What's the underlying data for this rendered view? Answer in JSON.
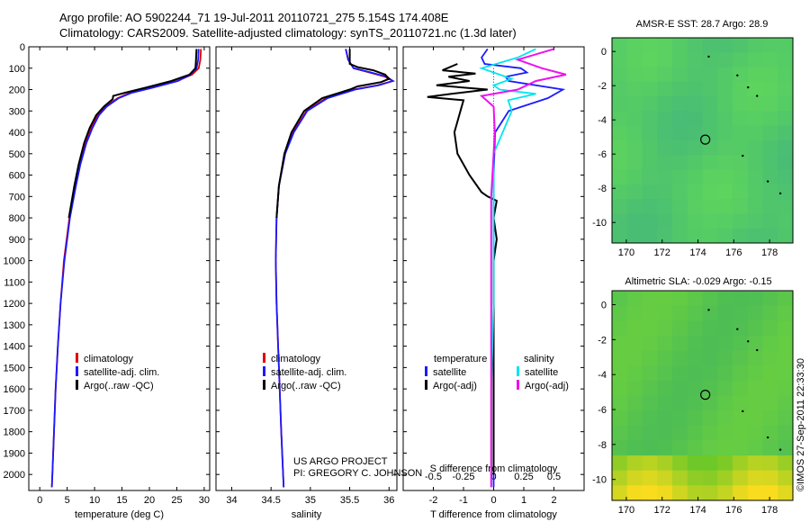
{
  "header": {
    "line1": "Argo profile: AO 5902244_71 19-Jul-2011 20110721_275 5.154S 174.408E",
    "line2": "Climatology: CARS2009. Satellite-adjusted climatology: synTS_20110721.nc (1.3d later)"
  },
  "colors": {
    "climatology": "#e00000",
    "satellite": "#1a1aff",
    "argo": "#000000",
    "cyan": "#00e5ee",
    "magenta": "#ee11ee"
  },
  "chart_data": [
    {
      "type": "line",
      "name": "temperature-profile",
      "xlabel": "temperature (deg C)",
      "ylim": [
        0,
        2075
      ],
      "xlim": [
        -2,
        31
      ],
      "xticks": [
        0,
        5,
        10,
        15,
        20,
        25,
        30
      ],
      "yticks": [
        0,
        100,
        200,
        300,
        400,
        500,
        600,
        700,
        800,
        900,
        1000,
        1100,
        1200,
        1300,
        1400,
        1500,
        1600,
        1700,
        1800,
        1900,
        2000
      ],
      "legend": [
        "climatology",
        "satellite-adj. clim.",
        "Argo(..raw -QC)"
      ],
      "series": [
        {
          "name": "climatology",
          "depth": [
            10,
            60,
            100,
            130,
            160,
            190,
            215,
            240,
            280,
            320,
            380,
            450,
            550,
            650,
            800,
            1000,
            1200,
            1400,
            1600,
            1800,
            2000,
            2060
          ],
          "values": [
            29.4,
            29.3,
            29.0,
            27.8,
            25.0,
            20.5,
            16.5,
            14.2,
            12.0,
            10.6,
            9.4,
            8.4,
            7.3,
            6.5,
            5.4,
            4.4,
            3.8,
            3.3,
            2.9,
            2.6,
            2.3,
            2.2
          ]
        },
        {
          "name": "satellite-adj. clim.",
          "depth": [
            10,
            60,
            100,
            130,
            160,
            190,
            215,
            240,
            280,
            320,
            380,
            450,
            550,
            650,
            800,
            1000,
            1200,
            1400,
            1600,
            1800,
            2000,
            2060
          ],
          "values": [
            29.0,
            28.9,
            28.6,
            27.5,
            25.2,
            20.8,
            16.8,
            14.4,
            12.2,
            10.8,
            9.6,
            8.5,
            7.4,
            6.6,
            5.5,
            4.5,
            3.8,
            3.3,
            2.9,
            2.6,
            2.3,
            2.2
          ]
        },
        {
          "name": "Argo(..raw -QC)",
          "depth": [
            10,
            60,
            100,
            130,
            160,
            190,
            215,
            230,
            245,
            280,
            320,
            380,
            450,
            550,
            650,
            800
          ],
          "values": [
            28.6,
            28.5,
            28.4,
            27.3,
            24.0,
            19.5,
            15.5,
            13.4,
            13.3,
            11.7,
            10.3,
            9.1,
            8.1,
            7.1,
            6.3,
            5.3
          ]
        }
      ]
    },
    {
      "type": "line",
      "name": "salinity-profile",
      "xlabel": "salinity",
      "ylim": [
        0,
        2075
      ],
      "xlim": [
        33.8,
        36.1
      ],
      "xticks": [
        34,
        34.5,
        35,
        35.5,
        36
      ],
      "xticklabels": [
        "34",
        "34.5",
        "35",
        "35.5",
        "36"
      ],
      "legend": [
        "climatology",
        "satellite-adj. clim.",
        "Argo(..raw -QC)"
      ],
      "series": [
        {
          "name": "climatology",
          "depth": [
            10,
            60,
            100,
            120,
            140,
            160,
            180,
            200,
            240,
            300,
            400,
            500,
            650,
            800,
            1000,
            1200,
            1500,
            1800,
            2060
          ],
          "values": [
            35.45,
            35.48,
            35.55,
            35.75,
            35.95,
            36.05,
            35.85,
            35.55,
            35.2,
            34.95,
            34.78,
            34.68,
            34.6,
            34.57,
            34.56,
            34.57,
            34.6,
            34.63,
            34.66
          ]
        },
        {
          "name": "satellite-adj. clim.",
          "depth": [
            10,
            60,
            100,
            120,
            140,
            160,
            180,
            200,
            240,
            300,
            400,
            500,
            650,
            800,
            1000,
            1200,
            1500,
            1800,
            2060
          ],
          "values": [
            35.45,
            35.48,
            35.55,
            35.77,
            35.97,
            36.05,
            35.87,
            35.57,
            35.22,
            34.96,
            34.79,
            34.68,
            34.6,
            34.57,
            34.56,
            34.57,
            34.6,
            34.63,
            34.66
          ]
        },
        {
          "name": "Argo(..raw -QC)",
          "depth": [
            10,
            80,
            95,
            110,
            130,
            150,
            165,
            185,
            200,
            240,
            300,
            400,
            500,
            650,
            800
          ],
          "values": [
            35.5,
            35.5,
            35.6,
            35.8,
            35.95,
            36.0,
            35.9,
            35.6,
            35.5,
            35.15,
            34.92,
            34.76,
            34.67,
            34.6,
            34.57
          ]
        }
      ]
    },
    {
      "type": "line",
      "name": "difference-profile",
      "xlabel": "T difference from climatology",
      "xlabel2": "S difference from climatology",
      "ylim": [
        0,
        2075
      ],
      "xlim": [
        -3,
        3
      ],
      "xticks": [
        -2,
        -1,
        0,
        1,
        2
      ],
      "xticks2": [
        -0.5,
        -0.25,
        0,
        0.25,
        0.5
      ],
      "xticklabels2": [
        "-0.5",
        "-0.25",
        "0",
        "0.25",
        "0.5"
      ],
      "legend_headers": [
        "temperature",
        "salinity"
      ],
      "legend": [
        "satellite",
        "Argo(-adj)",
        "satellite",
        "Argo(-adj)"
      ],
      "series": [
        {
          "name": "temperature satellite",
          "depth": [
            10,
            50,
            80,
            100,
            120,
            140,
            160,
            200,
            240,
            300,
            400,
            600,
            900,
            1200,
            1600,
            2060
          ],
          "values": [
            -0.2,
            -0.4,
            -0.3,
            0.9,
            1.1,
            0.4,
            0.5,
            2.3,
            1.8,
            0.5,
            0.05,
            0.0,
            0.0,
            0.0,
            0.0,
            0.0
          ]
        },
        {
          "name": "temperature Argo(-adj)",
          "depth": [
            80,
            110,
            125,
            140,
            160,
            180,
            200,
            220,
            235,
            250,
            300,
            400,
            500,
            600,
            680,
            700,
            720,
            800,
            900,
            1000,
            1200,
            1400,
            1600,
            2000
          ],
          "values": [
            -1.2,
            -1.7,
            -0.6,
            -1.5,
            -0.8,
            -1.9,
            -0.2,
            -1.4,
            -2.2,
            -1.0,
            -1.1,
            -1.3,
            -1.2,
            -0.8,
            -0.4,
            -0.2,
            0.1,
            0.0,
            0.1,
            0.0,
            0.0,
            0.0,
            0.0,
            0.0
          ]
        },
        {
          "name": "salinity satellite",
          "depth": [
            10,
            50,
            100,
            150,
            180,
            200,
            220,
            250,
            300,
            500,
            800,
            1200,
            1600,
            2060
          ],
          "values": [
            0.35,
            0.2,
            -0.1,
            0.15,
            0.0,
            0.05,
            0.35,
            0.12,
            0.15,
            0.0,
            0.0,
            0.0,
            -0.02,
            -0.02
          ]
        },
        {
          "name": "salinity Argo(-adj)",
          "depth": [
            10,
            60,
            100,
            130,
            160,
            200,
            230,
            280,
            400,
            500,
            700,
            900,
            1200,
            1500,
            1800,
            2060
          ],
          "values": [
            0.5,
            0.2,
            0.4,
            0.6,
            0.35,
            0.2,
            -0.1,
            0.0,
            0.01,
            0.0,
            -0.02,
            -0.02,
            -0.02,
            -0.02,
            -0.02,
            -0.02
          ]
        }
      ]
    },
    {
      "type": "heatmap",
      "name": "sst-map",
      "title": "AMSR-E SST: 28.7 Argo: 28.9",
      "xlim": [
        169.2,
        179.3
      ],
      "ylim": [
        -11.2,
        0.8
      ],
      "xticks": [
        170,
        172,
        174,
        176,
        178
      ],
      "yticks": [
        0,
        -2,
        -4,
        -6,
        -8,
        -10
      ],
      "argo_position": {
        "lon": 174.408,
        "lat": -5.154
      }
    },
    {
      "type": "heatmap",
      "name": "sla-map",
      "title": "Altimetric SLA: -0.029 Argo: -0.15",
      "xlim": [
        169.2,
        179.3
      ],
      "ylim": [
        -11.2,
        0.8
      ],
      "xticks": [
        170,
        172,
        174,
        176,
        178
      ],
      "yticks": [
        0,
        -2,
        -4,
        -6,
        -8,
        -10
      ],
      "argo_position": {
        "lon": 174.408,
        "lat": -5.154
      }
    }
  ],
  "credits": {
    "project": "US ARGO PROJECT",
    "pi": "PI: GREGORY C. JOHNSON",
    "stamp": "©IMOS 27-Sep-2011 22:33:30"
  }
}
